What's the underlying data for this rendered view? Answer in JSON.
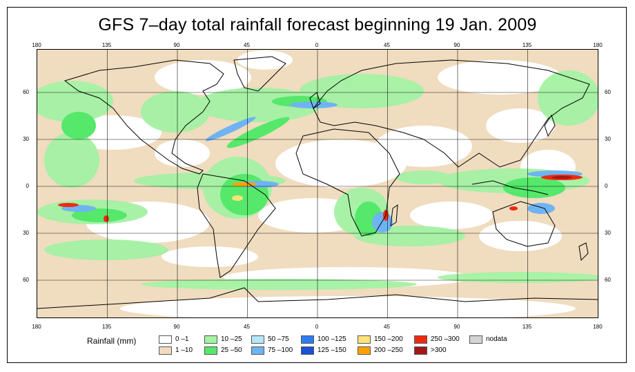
{
  "title": "GFS 7–day total rainfall forecast beginning 19 Jan. 2009",
  "axes": {
    "longitude_ticks": [
      "180",
      "135",
      "90",
      "45",
      "0",
      "45",
      "90",
      "135",
      "180"
    ],
    "latitude_ticks": [
      "60",
      "30",
      "0",
      "30",
      "60"
    ]
  },
  "legend": {
    "title": "Rainfall (mm)",
    "items": [
      {
        "label": "0 –1",
        "color": "#ffffff"
      },
      {
        "label": "1 –10",
        "color": "#f0dcbf"
      },
      {
        "label": "10 –25",
        "color": "#a4f2a4"
      },
      {
        "label": "25 –50",
        "color": "#55e86a"
      },
      {
        "label": "50 –75",
        "color": "#b6e6f8"
      },
      {
        "label": "75 –100",
        "color": "#6fb4f2"
      },
      {
        "label": "100 –125",
        "color": "#2d7cf0"
      },
      {
        "label": "125 –150",
        "color": "#1a4fd6"
      },
      {
        "label": "150 –200",
        "color": "#ffe27a"
      },
      {
        "label": "200 –250",
        "color": "#ffa200"
      },
      {
        "label": "250 –300",
        "color": "#ef2a10"
      },
      {
        "label": ">300",
        "color": "#a01818"
      },
      {
        "label": "nodata",
        "color": "#d4d4d4"
      }
    ]
  },
  "colors": {
    "coastline": "#000000",
    "grid": "#000000",
    "background": "#ffffff"
  }
}
